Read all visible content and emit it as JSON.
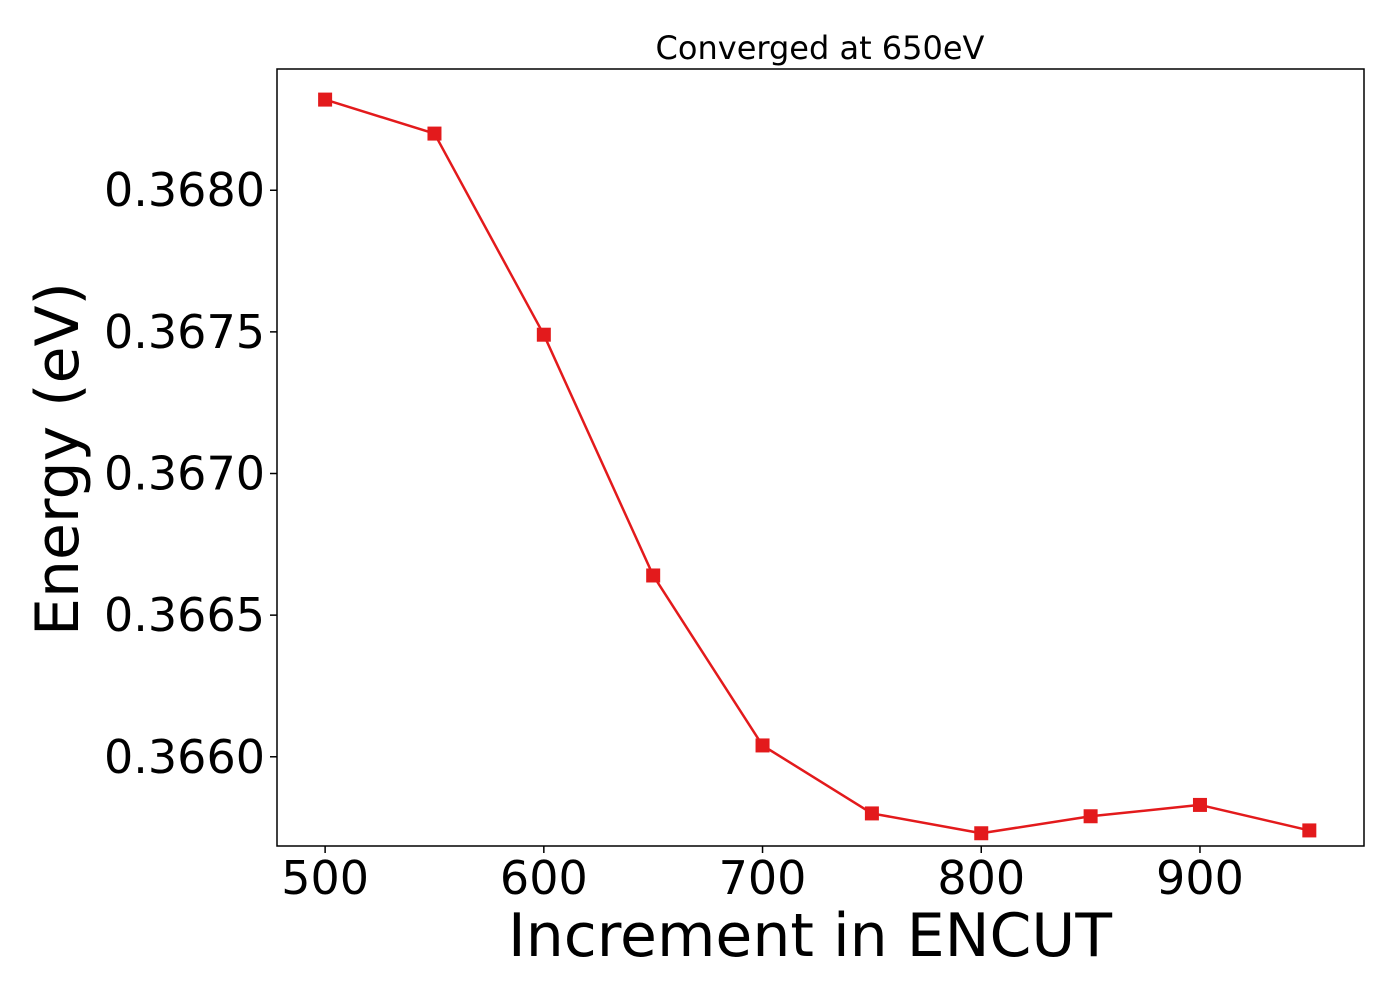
{
  "chart_data": {
    "type": "line",
    "title": "Converged at 650eV",
    "xlabel": "Increment in ENCUT",
    "ylabel": "Energy (eV)",
    "x": [
      500,
      550,
      600,
      650,
      700,
      750,
      800,
      850,
      900,
      950
    ],
    "series": [
      {
        "values": [
          0.36832,
          0.3682,
          0.36749,
          0.36664,
          0.36604,
          0.3658,
          0.36573,
          0.36579,
          0.36583,
          0.36574
        ],
        "color": "#e31a1c",
        "marker": "square"
      }
    ],
    "xlim": [
      478,
      975
    ],
    "ylim": [
      0.365685,
      0.368428
    ],
    "xticks": [
      500,
      600,
      700,
      800,
      900
    ],
    "xtick_labels": [
      "500",
      "600",
      "700",
      "800",
      "900"
    ],
    "yticks": [
      0.366,
      0.3665,
      0.367,
      0.3675,
      0.368
    ],
    "ytick_labels": [
      "0.3660",
      "0.3665",
      "0.3670",
      "0.3675",
      "0.3680"
    ],
    "grid": false,
    "legend": false
  }
}
